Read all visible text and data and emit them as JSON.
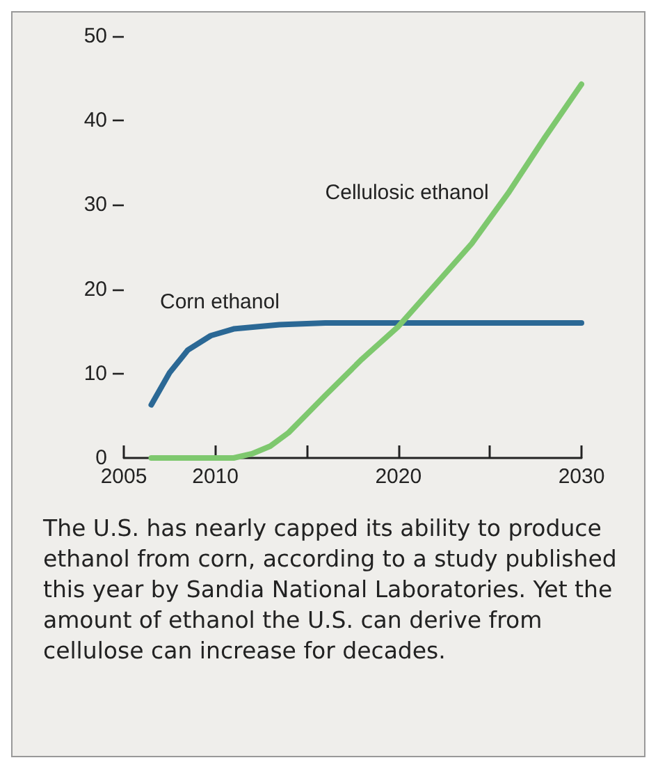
{
  "chart_data": {
    "type": "line",
    "xlim": [
      2005,
      2030
    ],
    "xticks": [
      2005,
      2010,
      {
        "value": 2015,
        "label": null
      },
      2020,
      {
        "value": 2025,
        "label": null
      },
      2030
    ],
    "ylim": [
      0,
      50
    ],
    "yticks": [
      0,
      10,
      20,
      30,
      40,
      50
    ],
    "grid": false,
    "legend": false,
    "marker": "none",
    "line_style": "solid",
    "series": [
      {
        "name": "Corn ethanol",
        "color": "#2b6895",
        "x": [
          2006.5,
          2007.5,
          2008.5,
          2009.75,
          2011,
          2013.5,
          2016,
          2020,
          2025,
          2030
        ],
        "values": [
          6.3,
          10.1,
          12.8,
          14.5,
          15.3,
          15.8,
          16,
          16,
          16,
          16
        ]
      },
      {
        "name": "Cellulosic ethanol",
        "color": "#7ec86e",
        "x": [
          2006.5,
          2011,
          2012,
          2013,
          2014,
          2015,
          2016,
          2018,
          2020,
          2022,
          2024,
          2026,
          2028,
          2030
        ],
        "values": [
          0,
          0,
          0.5,
          1.4,
          3,
          5.2,
          7.4,
          11.7,
          15.6,
          20.5,
          25.4,
          31.4,
          38,
          44.3
        ]
      }
    ],
    "annotations": [
      "The U.S. has nearly capped its ability to produce ethanol from corn, according to a study published this year by Sandia National Laboratories. Yet the amount of ethanol the U.S. can derive from cellulose can increase for decades."
    ]
  }
}
